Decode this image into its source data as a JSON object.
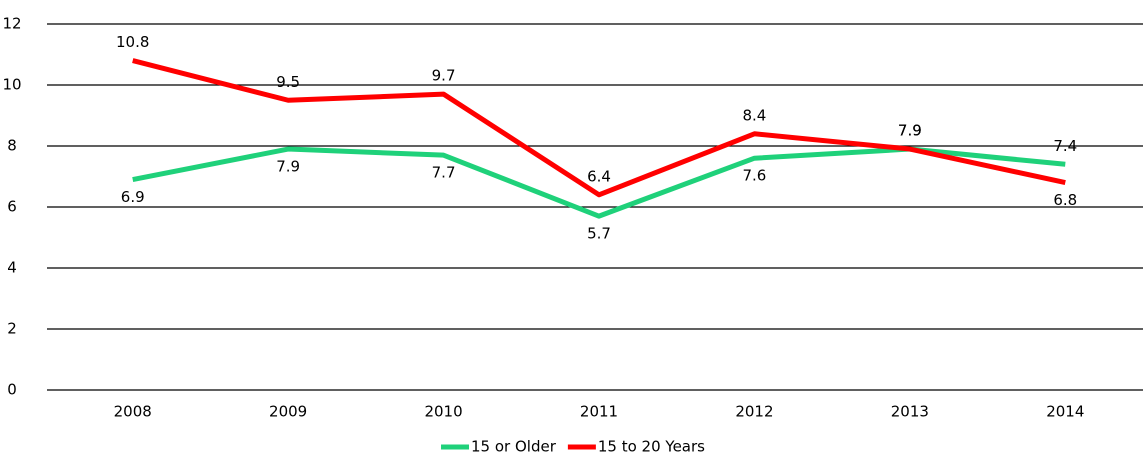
{
  "chart_data": {
    "type": "line",
    "categories": [
      "2008",
      "2009",
      "2010",
      "2011",
      "2012",
      "2013",
      "2014"
    ],
    "series": [
      {
        "name": "15 or Older",
        "color": "#1fd17a",
        "values": [
          6.9,
          7.9,
          7.7,
          5.7,
          7.6,
          7.9,
          7.4
        ]
      },
      {
        "name": "15 to 20 Years",
        "color": "#ff0000",
        "values": [
          10.8,
          9.5,
          9.7,
          6.4,
          8.4,
          7.9,
          6.8
        ]
      }
    ],
    "ylim": [
      0,
      12
    ],
    "yticks": [
      0,
      2,
      4,
      6,
      8,
      10,
      12
    ],
    "grid": true,
    "legend": "bottom"
  }
}
